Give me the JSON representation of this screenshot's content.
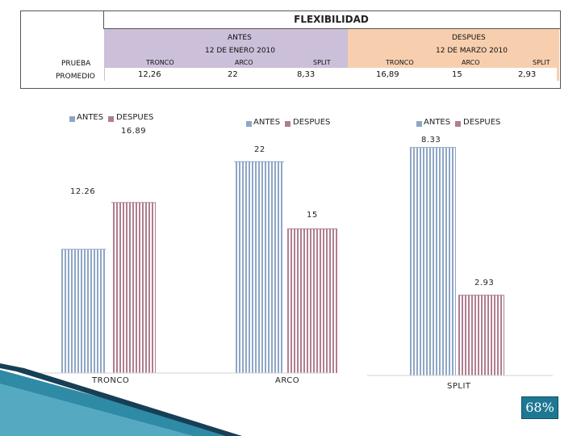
{
  "table": {
    "title": "FLEXIBILIDAD",
    "antes_header": "ANTES",
    "despues_header": "DESPUES",
    "antes_date": "12 DE ENERO 2010",
    "despues_date": "12 DE MARZO 2010",
    "row_prueba": "PRUEBA",
    "row_promedio": "PROMEDIO",
    "antes_cols": [
      "TRONCO",
      "ARCO",
      "SPLIT"
    ],
    "despues_cols": [
      "TRONCO",
      "ARCO",
      "SPLIT"
    ],
    "antes_values": [
      "12,26",
      "22",
      "8,33"
    ],
    "despues_values": [
      "16,89",
      "15",
      "2,93"
    ]
  },
  "legend": {
    "antes": "ANTES",
    "despues": "DESPUES",
    "antes_color": "#8ea6c6",
    "despues_color": "#b07e8e"
  },
  "badge": {
    "percent": "68%"
  },
  "chart_data": {
    "type": "bar",
    "title": "FLEXIBILIDAD",
    "categories": [
      "TRONCO",
      "ARCO",
      "SPLIT"
    ],
    "series": [
      {
        "name": "ANTES",
        "values": [
          12.26,
          22,
          8.33
        ],
        "color": "#8ea6c6"
      },
      {
        "name": "DESPUES",
        "values": [
          16.89,
          15,
          2.93
        ],
        "color": "#b07e8e"
      }
    ],
    "data_labels": {
      "TRONCO": [
        "12.26",
        "16.89"
      ],
      "ARCO": [
        "22",
        "15"
      ],
      "SPLIT": [
        "8.33",
        "2.93"
      ]
    },
    "grid": false,
    "legend": "top"
  }
}
